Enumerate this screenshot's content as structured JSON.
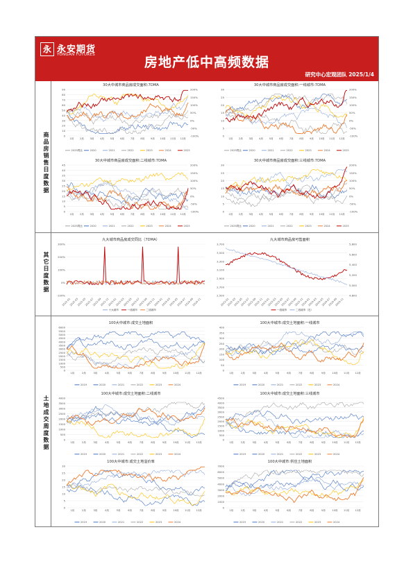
{
  "header": {
    "logo_cn": "永安期货",
    "logo_en": "YONGAN FUTURES",
    "logo_mark": "永",
    "title": "房地产低中高频数据",
    "author": "研究中心宏观团队  2025/1/4"
  },
  "sections": [
    {
      "label": "商品房销售日度数据"
    },
    {
      "label": "其它日度数据"
    },
    {
      "label": "土地成交周度数据"
    }
  ],
  "colors": {
    "brand_red": "#c81e1e",
    "blue_dark": "#4472c4",
    "blue_light": "#8faadc",
    "gray": "#a6a6a6",
    "yellow": "#ffc000",
    "orange": "#ed7d31",
    "red_dark": "#c00000"
  },
  "chart_data": [
    {
      "type": "line",
      "title": "30大中城市商品房成交面积:7DMA",
      "x_ticks": [
        "1月",
        "2月",
        "3月",
        "4月",
        "5月",
        "6月",
        "7月",
        "8月",
        "9月",
        "10月",
        "11月",
        "12月"
      ],
      "y_ticks": [
        "0",
        "10",
        "20",
        "30",
        "40",
        "50",
        "60",
        "70",
        "80",
        "90"
      ],
      "y2_ticks": [
        "-100%",
        "-50%",
        "0%",
        "50%",
        "100%",
        "150%",
        "200%"
      ],
      "legend": [
        "2025同比",
        "2020",
        "2021",
        "2022",
        "2023",
        "2024",
        "2025"
      ]
    },
    {
      "type": "line",
      "title": "30大中城市商品房成交面积:一线城市:7DMA",
      "x_ticks": [
        "1月",
        "2月",
        "3月",
        "4月",
        "5月",
        "6月",
        "7月",
        "8月",
        "9月",
        "10月",
        "11月",
        "12月"
      ],
      "y_ticks": [
        "0",
        "5",
        "10",
        "15",
        "20",
        "25",
        "30"
      ],
      "y2_ticks": [
        "-100%",
        "-50%",
        "0%",
        "50%",
        "100%",
        "150%",
        "200%"
      ],
      "legend": [
        "2025同比",
        "2020",
        "2021",
        "2022",
        "2023",
        "2024",
        "2025"
      ]
    },
    {
      "type": "line",
      "title": "30大中城市商品房成交面积:二线城市:7DMA",
      "x_ticks": [
        "1月",
        "2月",
        "3月",
        "4月",
        "5月",
        "6月",
        "7月",
        "8月",
        "9月",
        "10月",
        "11月",
        "12月"
      ],
      "y_ticks": [
        "0",
        "5",
        "10",
        "15",
        "20",
        "25",
        "30",
        "35",
        "40",
        "45"
      ],
      "y2_ticks": [
        "-100%",
        "-50%",
        "0%",
        "50%",
        "100%",
        "150%",
        "200%"
      ],
      "legend": [
        "2025同比",
        "2020",
        "2021",
        "2022",
        "2023",
        "2024",
        "2025"
      ]
    },
    {
      "type": "line",
      "title": "30大中城市商品房成交面积:三线城市:7DMA",
      "x_ticks": [
        "1月",
        "2月",
        "3月",
        "4月",
        "5月",
        "6月",
        "7月",
        "8月",
        "9月",
        "10月",
        "11月",
        "12月"
      ],
      "y_ticks": [
        "0",
        "5",
        "10",
        "15",
        "20",
        "25",
        "30"
      ],
      "y2_ticks": [
        "-100%",
        "-50%",
        "0%",
        "50%",
        "100%",
        "150%",
        "200%"
      ],
      "legend": [
        "2025同比",
        "2020",
        "2021",
        "2022",
        "2023",
        "2024",
        "2025"
      ]
    },
    {
      "type": "line",
      "title": "九大城市商品房成交同比（7DMA）",
      "x_ticks": [
        "2022-01",
        "2022-03",
        "2022-05",
        "2022-07",
        "2022-09",
        "2022-11",
        "2023-01",
        "2023-03",
        "2023-05",
        "2023-07",
        "2023-09",
        "2023-11",
        "2024-01",
        "2024-03",
        "2024-05",
        "2024-07",
        "2024-09",
        "2024-11"
      ],
      "y_ticks": [
        "-100%",
        "0%",
        "100%",
        "200%",
        "300%"
      ],
      "legend": [
        "十大城市",
        "一线城市",
        "二线城市"
      ]
    },
    {
      "type": "line",
      "title": "九大城市商品房可售面积",
      "x_ticks": [
        "2022-01",
        "2022-03",
        "2022-05",
        "2022-07",
        "2022-09",
        "2022-11",
        "2023-01",
        "2023-03",
        "2023-05",
        "2023-07",
        "2023-09",
        "2023-11",
        "2024-01",
        "2024-03",
        "2024-05",
        "2024-07",
        "2024-09",
        "2024-11"
      ],
      "y_ticks": [
        "2,500",
        "2,700",
        "2,900",
        "3,100",
        "3,300",
        "3,500",
        "3,700"
      ],
      "y2_ticks": [
        "4,800",
        "5,000",
        "5,200",
        "5,400",
        "5,600",
        "5,800"
      ],
      "legend": [
        "一线城市",
        "二线城市（右）"
      ]
    },
    {
      "type": "line",
      "title": "100大中城市:成交土地面积",
      "x_ticks": [
        "1月",
        "2月",
        "3月",
        "4月",
        "5月",
        "6月",
        "7月",
        "8月",
        "9月",
        "10月",
        "11月",
        "12月"
      ],
      "y_ticks": [
        "0",
        "500",
        "1000",
        "1500",
        "2000",
        "2500",
        "3000",
        "3500",
        "4000",
        "4500",
        "5000",
        "5500",
        "6000"
      ],
      "legend": [
        "2019",
        "2020",
        "2021",
        "2022",
        "2023",
        "2024"
      ]
    },
    {
      "type": "line",
      "title": "100大中城市:成交土地面积:一线城市",
      "x_ticks": [
        "1月",
        "2月",
        "3月",
        "4月",
        "5月",
        "6月",
        "7月",
        "8月",
        "9月",
        "10月",
        "11月",
        "12月"
      ],
      "y_ticks": [
        "0",
        "50",
        "100",
        "150",
        "200",
        "250",
        "300",
        "350",
        "400"
      ],
      "legend": [
        "2019",
        "2020",
        "2021",
        "2022",
        "2023",
        "2024"
      ]
    },
    {
      "type": "line",
      "title": "100大中城市:成交土地面积:二线城市",
      "x_ticks": [
        "1月",
        "2月",
        "3月",
        "4月",
        "5月",
        "6月",
        "7月",
        "8月",
        "9月",
        "10月",
        "11月",
        "12月"
      ],
      "y_ticks": [
        "0",
        "500",
        "1000",
        "1500",
        "2000",
        "2500",
        "3000",
        "3500",
        "4000"
      ],
      "legend": [
        "2019",
        "2020",
        "2021",
        "2022",
        "2023",
        "2024"
      ]
    },
    {
      "type": "line",
      "title": "100大中城市:成交土地面积:三线城市",
      "x_ticks": [
        "1月",
        "2月",
        "3月",
        "4月",
        "5月",
        "6月",
        "7月",
        "8月",
        "9月",
        "10月",
        "11月",
        "12月"
      ],
      "y_ticks": [
        "0",
        "500",
        "1000",
        "1500",
        "2000",
        "2500",
        "3000",
        "3500",
        "4000",
        "4500"
      ],
      "legend": [
        "2019",
        "2020",
        "2021",
        "2022",
        "2023",
        "2024"
      ]
    },
    {
      "type": "line",
      "title": "100大中城市:成交土地溢价率",
      "x_ticks": [
        "1月",
        "2月",
        "3月",
        "4月",
        "5月",
        "6月",
        "7月",
        "8月",
        "9月",
        "10月",
        "11月",
        "12月"
      ],
      "y_ticks": [
        "0",
        "5",
        "10",
        "15",
        "20",
        "25",
        "30"
      ],
      "legend": [
        "2019",
        "2020",
        "2021",
        "2022",
        "2023",
        "2024"
      ]
    },
    {
      "type": "line",
      "title": "100大中城市:供应土地面积",
      "x_ticks": [
        "1月",
        "2月",
        "3月",
        "4月",
        "5月",
        "6月",
        "7月",
        "8月",
        "9月",
        "10月",
        "11月",
        "12月"
      ],
      "y_ticks": [
        "0",
        "1000",
        "2000",
        "3000",
        "4000",
        "5000",
        "6000",
        "7000"
      ],
      "legend": [
        "2019",
        "2020",
        "2021",
        "2022",
        "2023",
        "2024"
      ]
    }
  ]
}
